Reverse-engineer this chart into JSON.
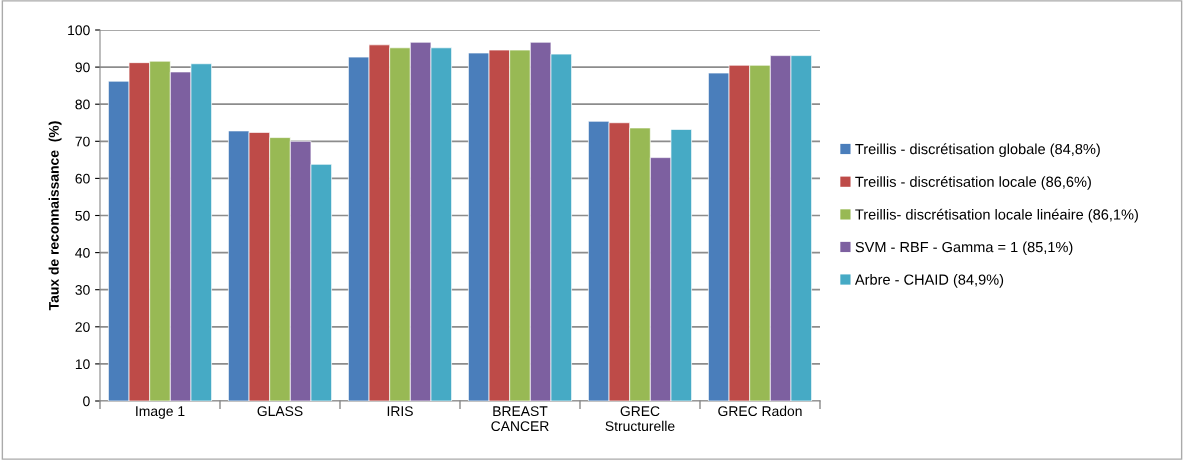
{
  "chart_data": {
    "type": "bar",
    "ylabel": "Taux de reconnaissance  (%)",
    "categories": [
      "Image 1",
      "GLASS",
      "IRIS",
      "BREAST\nCANCER",
      "GREC\nStructurelle",
      "GREC Radon"
    ],
    "series": [
      {
        "name": "Treillis - discrétisation globale (84,8%)",
        "color": "#4a7ebb",
        "values": [
          86.2,
          72.8,
          92.7,
          93.8,
          75.4,
          88.4
        ]
      },
      {
        "name": "Treillis - discrétisation locale (86,6%)",
        "color": "#be4b48",
        "values": [
          91.2,
          72.4,
          96.0,
          94.6,
          75.0,
          90.5
        ]
      },
      {
        "name": "Treillis- discrétisation locale linéaire (86,1%)",
        "color": "#98b954",
        "values": [
          91.6,
          71.0,
          95.2,
          94.6,
          73.6,
          90.5
        ]
      },
      {
        "name": "SVM - RBF - Gamma = 1 (85,1%)",
        "color": "#7d60a0",
        "values": [
          88.7,
          70.0,
          96.7,
          96.7,
          65.6,
          93.1
        ]
      },
      {
        "name": "Arbre - CHAID (84,9%)",
        "color": "#46aac5",
        "values": [
          90.9,
          63.8,
          95.2,
          93.5,
          73.2,
          93.1
        ]
      }
    ],
    "ylim": [
      0,
      100
    ],
    "yticks": [
      0,
      10,
      20,
      30,
      40,
      50,
      60,
      70,
      80,
      90,
      100
    ],
    "grid": "y",
    "legend": "right"
  }
}
